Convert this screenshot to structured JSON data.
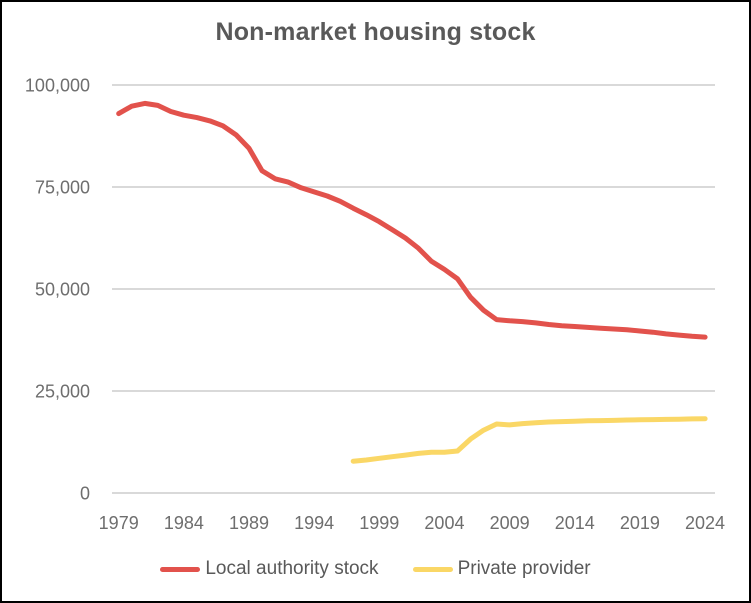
{
  "chart": {
    "title": "Non-market housing stock"
  },
  "colors": {
    "local_authority_line": "#E2524C",
    "private_provider_line": "#FAD766",
    "gridline": "#D9D9D9",
    "title_text": "#595959",
    "axis_text": "#6E6E6E",
    "legend_text": "#595959"
  },
  "chart_data": {
    "type": "line",
    "title": "Non-market housing stock",
    "xlabel": "",
    "ylabel": "",
    "ylim": [
      0,
      100000
    ],
    "yticks": [
      0,
      25000,
      50000,
      75000,
      100000
    ],
    "ytick_labels": [
      "0",
      "25,000",
      "50,000",
      "75,000",
      "100,000"
    ],
    "xticks": [
      1979,
      1984,
      1989,
      1994,
      1999,
      2004,
      2009,
      2014,
      2019,
      2024
    ],
    "grid": "horizontal",
    "legend_position": "bottom",
    "series": [
      {
        "name": "Local authority stock",
        "color": "#E2524C",
        "x": [
          1979,
          1980,
          1981,
          1982,
          1983,
          1984,
          1985,
          1986,
          1987,
          1988,
          1989,
          1990,
          1991,
          1992,
          1993,
          1994,
          1995,
          1996,
          1997,
          1998,
          1999,
          2000,
          2001,
          2002,
          2003,
          2004,
          2005,
          2006,
          2007,
          2008,
          2009,
          2010,
          2011,
          2012,
          2013,
          2014,
          2015,
          2016,
          2017,
          2018,
          2019,
          2020,
          2021,
          2022,
          2023,
          2024
        ],
        "values": [
          93000,
          94800,
          95500,
          95000,
          93500,
          92600,
          92000,
          91200,
          90000,
          87800,
          84500,
          79000,
          77000,
          76200,
          74800,
          73800,
          72800,
          71500,
          69800,
          68200,
          66500,
          64500,
          62500,
          60000,
          56800,
          54800,
          52500,
          48000,
          44800,
          42500,
          42200,
          42000,
          41700,
          41300,
          41000,
          40800,
          40600,
          40400,
          40200,
          40000,
          39700,
          39400,
          39000,
          38700,
          38400,
          38200
        ]
      },
      {
        "name": "Private provider",
        "color": "#FAD766",
        "x": [
          1997,
          1998,
          1999,
          2000,
          2001,
          2002,
          2003,
          2004,
          2005,
          2006,
          2007,
          2008,
          2009,
          2010,
          2011,
          2012,
          2013,
          2014,
          2015,
          2016,
          2017,
          2018,
          2019,
          2020,
          2021,
          2022,
          2023,
          2024
        ],
        "values": [
          7800,
          8100,
          8500,
          8900,
          9300,
          9700,
          10000,
          10000,
          10300,
          13200,
          15400,
          16900,
          16700,
          17000,
          17200,
          17400,
          17500,
          17600,
          17700,
          17750,
          17800,
          17900,
          17950,
          18000,
          18050,
          18100,
          18150,
          18200
        ]
      }
    ]
  }
}
